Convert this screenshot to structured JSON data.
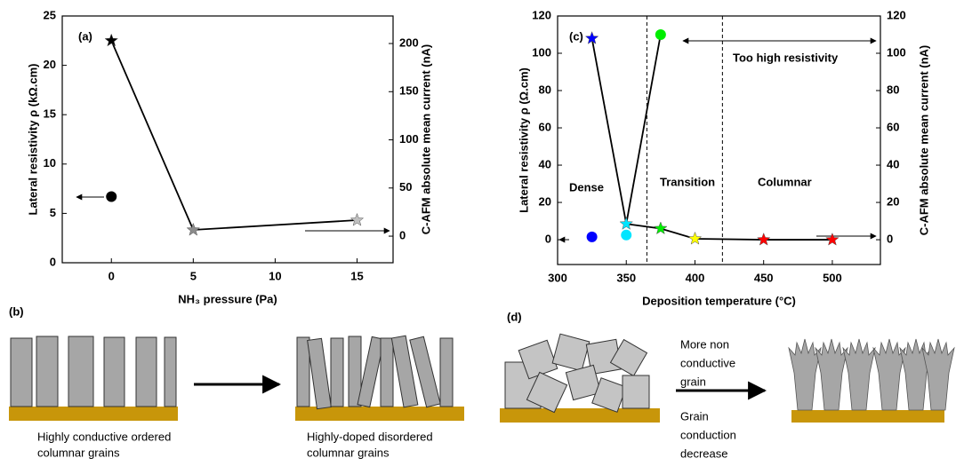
{
  "chart_data": [
    {
      "type": "scatter",
      "x_label": "NH₃ pressure (Pa)",
      "y_label": "Lateral resistivity ρ (kΩ.cm)",
      "y2_label": "C-AFM absolute mean current (nA)",
      "annotations": [
        "(a)"
      ],
      "xlim": [
        -3,
        17.2
      ],
      "xticks": [
        0,
        5,
        10,
        15
      ],
      "ylim": [
        0,
        25
      ],
      "yticks": [
        0,
        5,
        10,
        15,
        20,
        25
      ],
      "y2lim": [
        -27.6,
        228.6
      ],
      "y2ticks": [
        0,
        50,
        100,
        150,
        200
      ],
      "series": [
        {
          "marker": "circle",
          "line": false,
          "x": [
            0
          ],
          "values": [
            6.7
          ],
          "colors": [
            "#000000"
          ]
        },
        {
          "marker": "star",
          "line": true,
          "axis": "y2",
          "x": [
            0,
            5,
            15
          ],
          "values": [
            203,
            6.5,
            16.6
          ],
          "colors": [
            "#000000",
            "#8c8c8c",
            "#c0c0c0"
          ]
        }
      ]
    },
    {
      "type": "scatter",
      "x_label": "Deposition temperature (°C)",
      "y_label": "Lateral resistivity ρ (Ω.cm)",
      "y2_label": "C-AFM absolute mean current (nA)",
      "annotations": [
        "(c)",
        "Too high resistivity",
        "Dense",
        "Transition",
        "Columnar"
      ],
      "xlim": [
        300,
        535
      ],
      "xticks": [
        300,
        350,
        400,
        450,
        500
      ],
      "ylim": [
        -13.3,
        120
      ],
      "yticks": [
        0,
        20,
        40,
        60,
        80,
        100,
        120
      ],
      "y2lim": [
        -13.3,
        120
      ],
      "y2ticks": [
        0,
        20,
        40,
        60,
        80,
        100,
        120
      ],
      "vlines": [
        365,
        420
      ],
      "series": [
        {
          "marker": "circle",
          "line": false,
          "x": [
            325,
            350,
            375
          ],
          "values": [
            1.5,
            2.5,
            110
          ],
          "colors": [
            "#0000ff",
            "#00e5ff",
            "#00ee00"
          ]
        },
        {
          "marker": "star",
          "line": true,
          "axis": "y2",
          "x": [
            325,
            350,
            375,
            400,
            450,
            500
          ],
          "values": [
            108,
            8.5,
            6,
            0.5,
            0,
            0
          ],
          "colors": [
            "#0000ff",
            "#00e5ff",
            "#00ee00",
            "#ffff00",
            "#ff0000",
            "#ff0000"
          ]
        }
      ]
    }
  ],
  "diagram": {
    "panel_b": "(b)",
    "panel_d": "(d)",
    "caption_left": [
      "Highly conductive ordered",
      "columnar grains"
    ],
    "caption_right": [
      "Highly-doped disordered",
      "columnar grains"
    ],
    "arrow_top": [
      "More non",
      "conductive",
      "grain"
    ],
    "arrow_bottom": [
      "Grain",
      "conduction",
      "decrease"
    ]
  }
}
